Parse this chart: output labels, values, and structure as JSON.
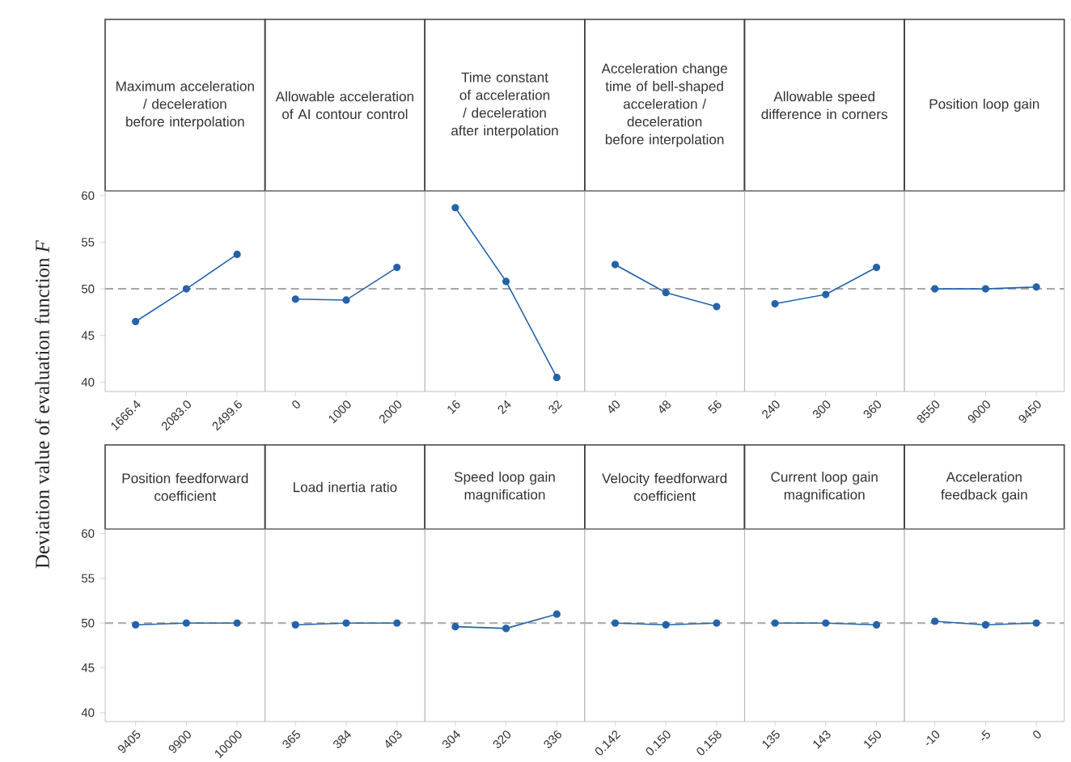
{
  "chart_data": [
    {
      "type": "line",
      "title": "Maximum acceleration / deceleration before interpolation",
      "ylabel": "Deviation value of evaluation function *F*",
      "categories": [
        "1666.4",
        "2083.0",
        "2499.6"
      ],
      "values": [
        46.5,
        50.0,
        53.7
      ],
      "color": "#2563a8",
      "marker": "circle",
      "ylim": [
        39,
        60.5
      ],
      "yticks": [
        40,
        45,
        50,
        55,
        60
      ],
      "ref_lines": [
        {
          "axis": "y",
          "value": 50,
          "color": "#a6a6a6",
          "line_style": "dashed"
        }
      ]
    },
    {
      "type": "line",
      "title": "Allowable acceleration of AI contour control",
      "categories": [
        "0",
        "1000",
        "2000"
      ],
      "values": [
        48.9,
        48.8,
        52.3
      ],
      "color": "#2563a8",
      "marker": "circle",
      "ylim": [
        39,
        60.5
      ],
      "yticks": [
        40,
        45,
        50,
        55,
        60
      ],
      "tick_labels": "x",
      "ref_lines": [
        {
          "axis": "y",
          "value": 50,
          "color": "#a6a6a6",
          "line_style": "dashed"
        }
      ]
    },
    {
      "type": "line",
      "title": "Time constant of acceleration / deceleration after interpolation",
      "categories": [
        "16",
        "24",
        "32"
      ],
      "values": [
        58.7,
        50.8,
        40.5
      ],
      "color": "#2563a8",
      "marker": "circle",
      "ylim": [
        39,
        60.5
      ],
      "yticks": [
        40,
        45,
        50,
        55,
        60
      ],
      "tick_labels": "x",
      "ref_lines": [
        {
          "axis": "y",
          "value": 50,
          "color": "#a6a6a6",
          "line_style": "dashed"
        }
      ]
    },
    {
      "type": "line",
      "title": "Acceleration change time of bell-shaped acceleration / deceleration before interpolation",
      "categories": [
        "40",
        "48",
        "56"
      ],
      "values": [
        52.6,
        49.6,
        48.1
      ],
      "color": "#2563a8",
      "marker": "circle",
      "ylim": [
        39,
        60.5
      ],
      "yticks": [
        40,
        45,
        50,
        55,
        60
      ],
      "tick_labels": "x",
      "ref_lines": [
        {
          "axis": "y",
          "value": 50,
          "color": "#a6a6a6",
          "line_style": "dashed"
        }
      ]
    },
    {
      "type": "line",
      "title": "Allowable speed difference in corners",
      "categories": [
        "240",
        "300",
        "360"
      ],
      "values": [
        48.4,
        49.4,
        52.3
      ],
      "color": "#2563a8",
      "marker": "circle",
      "ylim": [
        39,
        60.5
      ],
      "yticks": [
        40,
        45,
        50,
        55,
        60
      ],
      "tick_labels": "x",
      "ref_lines": [
        {
          "axis": "y",
          "value": 50,
          "color": "#a6a6a6",
          "line_style": "dashed"
        }
      ]
    },
    {
      "type": "line",
      "title": "Position loop gain",
      "categories": [
        "8550",
        "9000",
        "9450"
      ],
      "values": [
        50.0,
        50.0,
        50.2
      ],
      "color": "#2563a8",
      "marker": "circle",
      "ylim": [
        39,
        60.5
      ],
      "yticks": [
        40,
        45,
        50,
        55,
        60
      ],
      "tick_labels": "x",
      "ref_lines": [
        {
          "axis": "y",
          "value": 50,
          "color": "#a6a6a6",
          "line_style": "dashed"
        }
      ]
    },
    {
      "type": "line",
      "title": "Position feedforward coefficient",
      "categories": [
        "9405",
        "9900",
        "10000"
      ],
      "values": [
        49.8,
        50.0,
        50.0
      ],
      "color": "#2563a8",
      "marker": "circle",
      "ylim": [
        39,
        60.5
      ],
      "yticks": [
        40,
        45,
        50,
        55,
        60
      ],
      "ref_lines": [
        {
          "axis": "y",
          "value": 50,
          "color": "#a6a6a6",
          "line_style": "dashed"
        }
      ]
    },
    {
      "type": "line",
      "title": "Load inertia ratio",
      "categories": [
        "365",
        "384",
        "403"
      ],
      "values": [
        49.8,
        50.0,
        50.0
      ],
      "color": "#2563a8",
      "marker": "circle",
      "ylim": [
        39,
        60.5
      ],
      "yticks": [
        40,
        45,
        50,
        55,
        60
      ],
      "tick_labels": "x",
      "ref_lines": [
        {
          "axis": "y",
          "value": 50,
          "color": "#a6a6a6",
          "line_style": "dashed"
        }
      ]
    },
    {
      "type": "line",
      "title": "Speed loop gain magnification",
      "categories": [
        "304",
        "320",
        "336"
      ],
      "values": [
        49.6,
        49.4,
        51.0
      ],
      "color": "#2563a8",
      "marker": "circle",
      "ylim": [
        39,
        60.5
      ],
      "yticks": [
        40,
        45,
        50,
        55,
        60
      ],
      "tick_labels": "x",
      "ref_lines": [
        {
          "axis": "y",
          "value": 50,
          "color": "#a6a6a6",
          "line_style": "dashed"
        }
      ]
    },
    {
      "type": "line",
      "title": "Velocity feedforward coefficient",
      "categories": [
        "0.142",
        "0.150",
        "0.158"
      ],
      "values": [
        50.0,
        49.8,
        50.0
      ],
      "color": "#2563a8",
      "marker": "circle",
      "ylim": [
        39,
        60.5
      ],
      "yticks": [
        40,
        45,
        50,
        55,
        60
      ],
      "tick_labels": "x",
      "ref_lines": [
        {
          "axis": "y",
          "value": 50,
          "color": "#a6a6a6",
          "line_style": "dashed"
        }
      ]
    },
    {
      "type": "line",
      "title": "Current loop gain magnification",
      "categories": [
        "135",
        "143",
        "150"
      ],
      "values": [
        50.0,
        50.0,
        49.8
      ],
      "color": "#2563a8",
      "marker": "circle",
      "ylim": [
        39,
        60.5
      ],
      "yticks": [
        40,
        45,
        50,
        55,
        60
      ],
      "tick_labels": "x",
      "ref_lines": [
        {
          "axis": "y",
          "value": 50,
          "color": "#a6a6a6",
          "line_style": "dashed"
        }
      ]
    },
    {
      "type": "line",
      "title": "Acceleration feedback gain",
      "categories": [
        "-10",
        "-5",
        "0"
      ],
      "values": [
        50.2,
        49.8,
        50.0
      ],
      "color": "#2563a8",
      "marker": "circle",
      "ylim": [
        39,
        60.5
      ],
      "yticks": [
        40,
        45,
        50,
        55,
        60
      ],
      "tick_labels": "x",
      "ref_lines": [
        {
          "axis": "y",
          "value": 50,
          "color": "#a6a6a6",
          "line_style": "dashed"
        }
      ]
    }
  ]
}
